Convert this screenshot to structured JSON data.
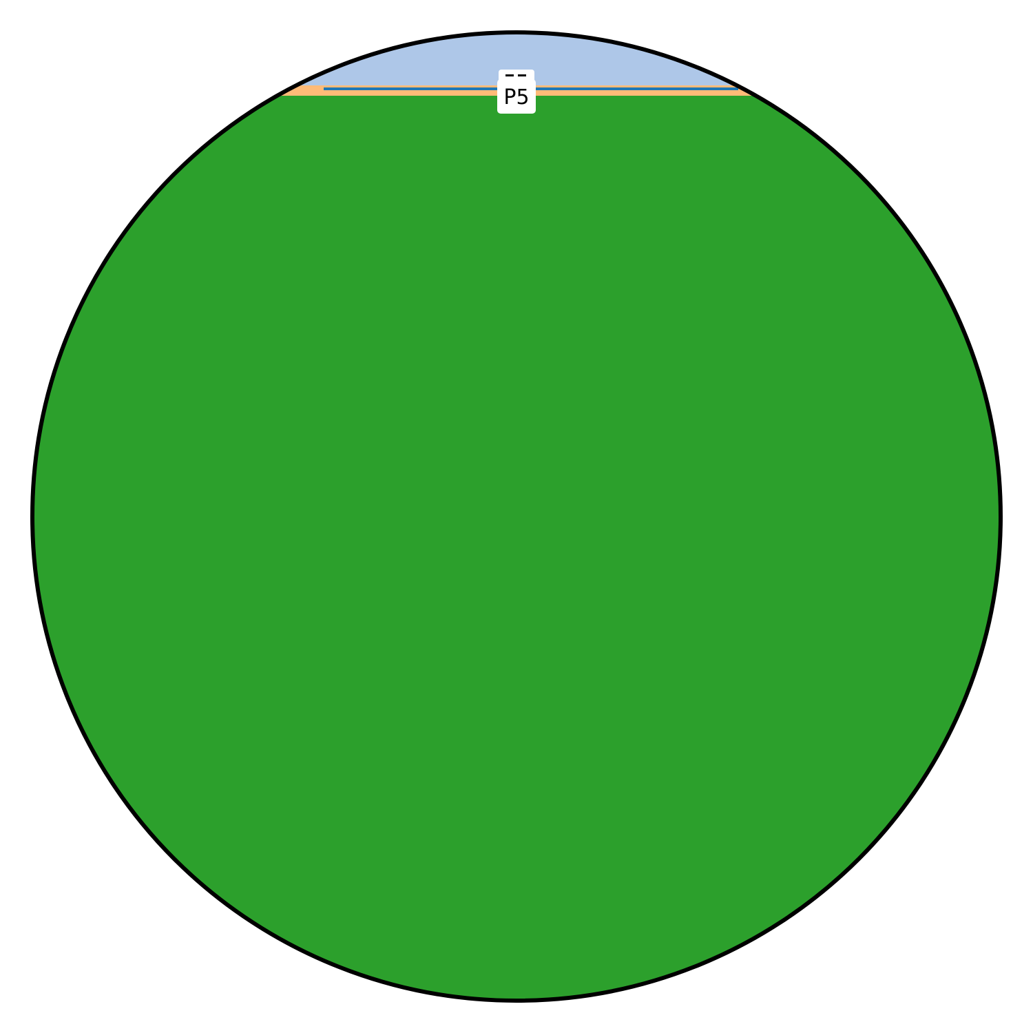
{
  "chart_data": {
    "type": "area",
    "title": "",
    "xlabel": "",
    "ylabel": "",
    "grid": false,
    "axes_visible": false,
    "frame_shape": "circle",
    "series": [
      {
        "name": "",
        "color": "#aec7e8",
        "level": 1.0
      },
      {
        "name": "",
        "color": "#ff7f0e",
        "steps": [
          {
            "x": [
              0.19,
              0.24
            ],
            "level": 0.9
          },
          {
            "x": [
              0.24,
              0.3
            ],
            "level": 0.884
          },
          {
            "x": [
              0.3,
              0.37
            ],
            "level": 0.878
          },
          {
            "x": [
              0.37,
              0.42
            ],
            "level": 0.876
          }
        ]
      },
      {
        "name": "",
        "color": "#1f77b4",
        "x": [
          0.3,
          0.73
        ],
        "level": 0.885
      },
      {
        "name": "",
        "color": "#ffbb78",
        "level": 0.878
      },
      {
        "name": "",
        "color": "#2ca02c",
        "level": 0.868
      }
    ],
    "labels": [
      {
        "text": "P5",
        "x": 0.5,
        "y": 0.868
      },
      {
        "text": "",
        "x": 0.5,
        "y": 0.9
      }
    ]
  }
}
